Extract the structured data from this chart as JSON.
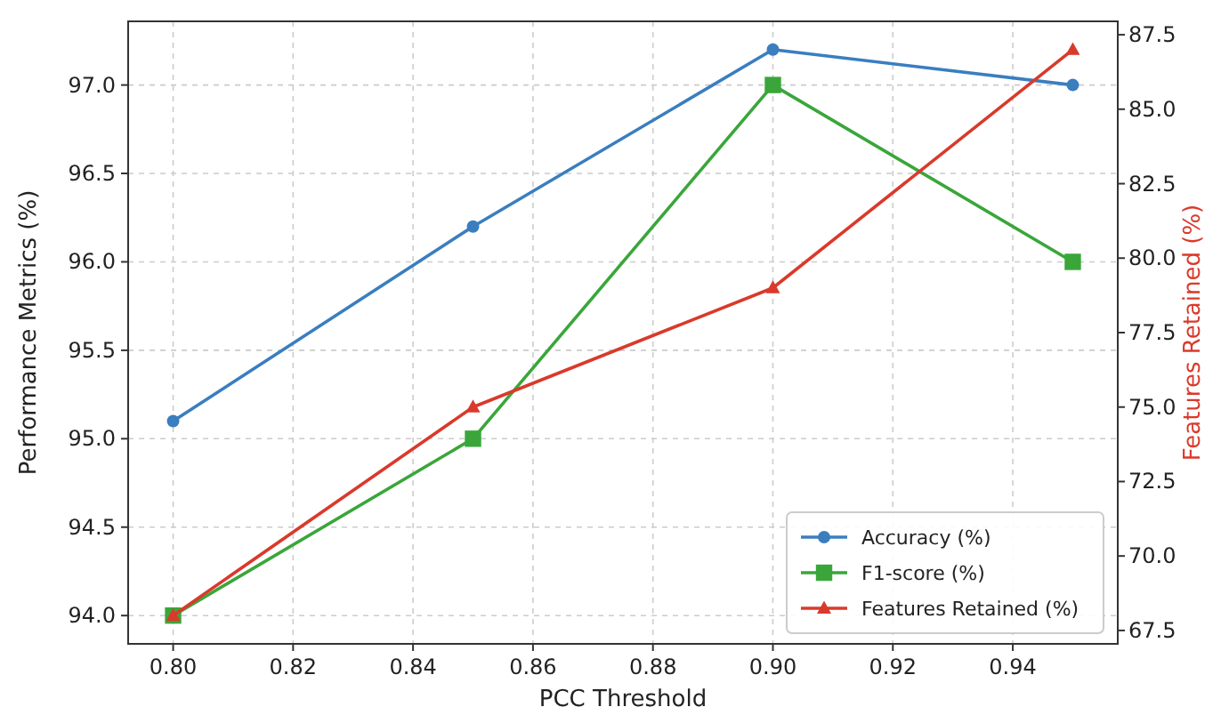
{
  "chart_data": {
    "type": "line",
    "xlabel": "PCC Threshold",
    "ylabel": "Performance Metrics (%)",
    "y2label": "Features Retained (%)",
    "x": [
      0.8,
      0.85,
      0.9,
      0.95
    ],
    "series": [
      {
        "name": "Accuracy (%)",
        "color": "#3a7ebf",
        "values": [
          95.1,
          96.2,
          97.2,
          97.0
        ],
        "marker": "circle"
      },
      {
        "name": "F1-score (%)",
        "color": "#3aa63a",
        "values": [
          94.0,
          95.0,
          97.0,
          96.0
        ],
        "marker": "square"
      },
      {
        "name": "Features Retained (%)",
        "color": "#d93a2b",
        "values": [
          68,
          75,
          79,
          87
        ],
        "marker": "triangle",
        "axis": "y2"
      }
    ],
    "xlim": [
      0.7925,
      0.9575
    ],
    "xticks": [
      {
        "value": 0.8,
        "label": "0.80"
      },
      {
        "value": 0.82,
        "label": "0.82"
      },
      {
        "value": 0.84,
        "label": "0.84"
      },
      {
        "value": 0.86,
        "label": "0.86"
      },
      {
        "value": 0.88,
        "label": "0.88"
      },
      {
        "value": 0.9,
        "label": "0.90"
      },
      {
        "value": 0.92,
        "label": "0.92"
      },
      {
        "value": 0.94,
        "label": "0.94"
      }
    ],
    "ylim": [
      93.84,
      97.36
    ],
    "yticks": [
      {
        "value": 94,
        "label": "94.0"
      },
      {
        "value": 94.5,
        "label": "94.5"
      },
      {
        "value": 95,
        "label": "95.0"
      },
      {
        "value": 95.5,
        "label": "95.5"
      },
      {
        "value": 96,
        "label": "96.0"
      },
      {
        "value": 96.5,
        "label": "96.5"
      },
      {
        "value": 97,
        "label": "97.0"
      }
    ],
    "y2lim": [
      67.05,
      87.95
    ],
    "y2ticks": [
      {
        "value": 67.5,
        "label": "67.5"
      },
      {
        "value": 70,
        "label": "70.0"
      },
      {
        "value": 72.5,
        "label": "72.5"
      },
      {
        "value": 75,
        "label": "75.0"
      },
      {
        "value": 77.5,
        "label": "77.5"
      },
      {
        "value": 80,
        "label": "80.0"
      },
      {
        "value": 82.5,
        "label": "82.5"
      },
      {
        "value": 85,
        "label": "85.0"
      },
      {
        "value": 87.5,
        "label": "87.5"
      }
    ],
    "grid": true,
    "legend": "bottom right",
    "line_style": "solid"
  }
}
